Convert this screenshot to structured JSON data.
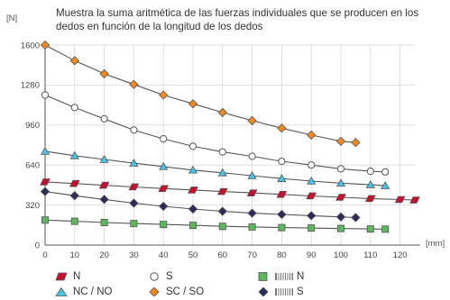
{
  "chart_data": {
    "type": "line",
    "title": "Muestra la suma aritmética de las fuerzas individuales que se producen en los dedos en función de la longitud de los dedos",
    "ylabel": "[N]",
    "xlabel": "[mm]",
    "xlim": [
      0,
      125
    ],
    "ylim": [
      0,
      1600
    ],
    "xticks": [
      0,
      10,
      20,
      30,
      40,
      50,
      60,
      70,
      80,
      90,
      100,
      110,
      120
    ],
    "yticks": [
      0,
      320,
      640,
      960,
      1280,
      1600
    ],
    "grid": true,
    "legend_position": "bottom-left",
    "series": [
      {
        "name": "N",
        "hatched": false,
        "marker": "parallelogram",
        "color": "#c8102e",
        "x": [
          0,
          10,
          20,
          30,
          40,
          50,
          60,
          70,
          80,
          90,
          100,
          110,
          120,
          125
        ],
        "y": [
          505,
          492,
          478,
          465,
          452,
          440,
          428,
          417,
          405,
          393,
          382,
          372,
          364,
          360
        ]
      },
      {
        "name": "S",
        "hatched": false,
        "marker": "circle",
        "color": "#ffffff",
        "x": [
          0,
          10,
          20,
          30,
          40,
          50,
          60,
          70,
          80,
          90,
          100,
          110,
          115
        ],
        "y": [
          1200,
          1100,
          1010,
          920,
          850,
          790,
          745,
          710,
          670,
          640,
          610,
          590,
          585
        ]
      },
      {
        "name": "N",
        "hatched": true,
        "marker": "square",
        "color": "#5cb85c",
        "x": [
          0,
          10,
          20,
          30,
          40,
          50,
          60,
          70,
          80,
          90,
          100,
          110,
          115
        ],
        "y": [
          200,
          190,
          180,
          172,
          165,
          158,
          150,
          145,
          140,
          136,
          132,
          129,
          127
        ]
      },
      {
        "name": "NC / NO",
        "hatched": false,
        "marker": "triangle",
        "color": "#45c6e8",
        "x": [
          0,
          10,
          20,
          30,
          40,
          50,
          60,
          70,
          80,
          90,
          100,
          110,
          115
        ],
        "y": [
          750,
          715,
          685,
          655,
          628,
          600,
          578,
          555,
          532,
          512,
          495,
          482,
          475
        ]
      },
      {
        "name": "SC / SO",
        "hatched": false,
        "marker": "diamond",
        "color": "#f08a1c",
        "x": [
          0,
          10,
          20,
          30,
          40,
          50,
          60,
          70,
          80,
          90,
          100,
          105
        ],
        "y": [
          1600,
          1475,
          1370,
          1285,
          1200,
          1130,
          1060,
          995,
          935,
          880,
          830,
          820
        ]
      },
      {
        "name": "S",
        "hatched": true,
        "marker": "diamond",
        "color": "#2b2b5c",
        "x": [
          0,
          10,
          20,
          30,
          40,
          50,
          60,
          70,
          80,
          90,
          100,
          105
        ],
        "y": [
          428,
          395,
          365,
          335,
          310,
          288,
          270,
          255,
          245,
          235,
          225,
          220
        ]
      }
    ]
  }
}
